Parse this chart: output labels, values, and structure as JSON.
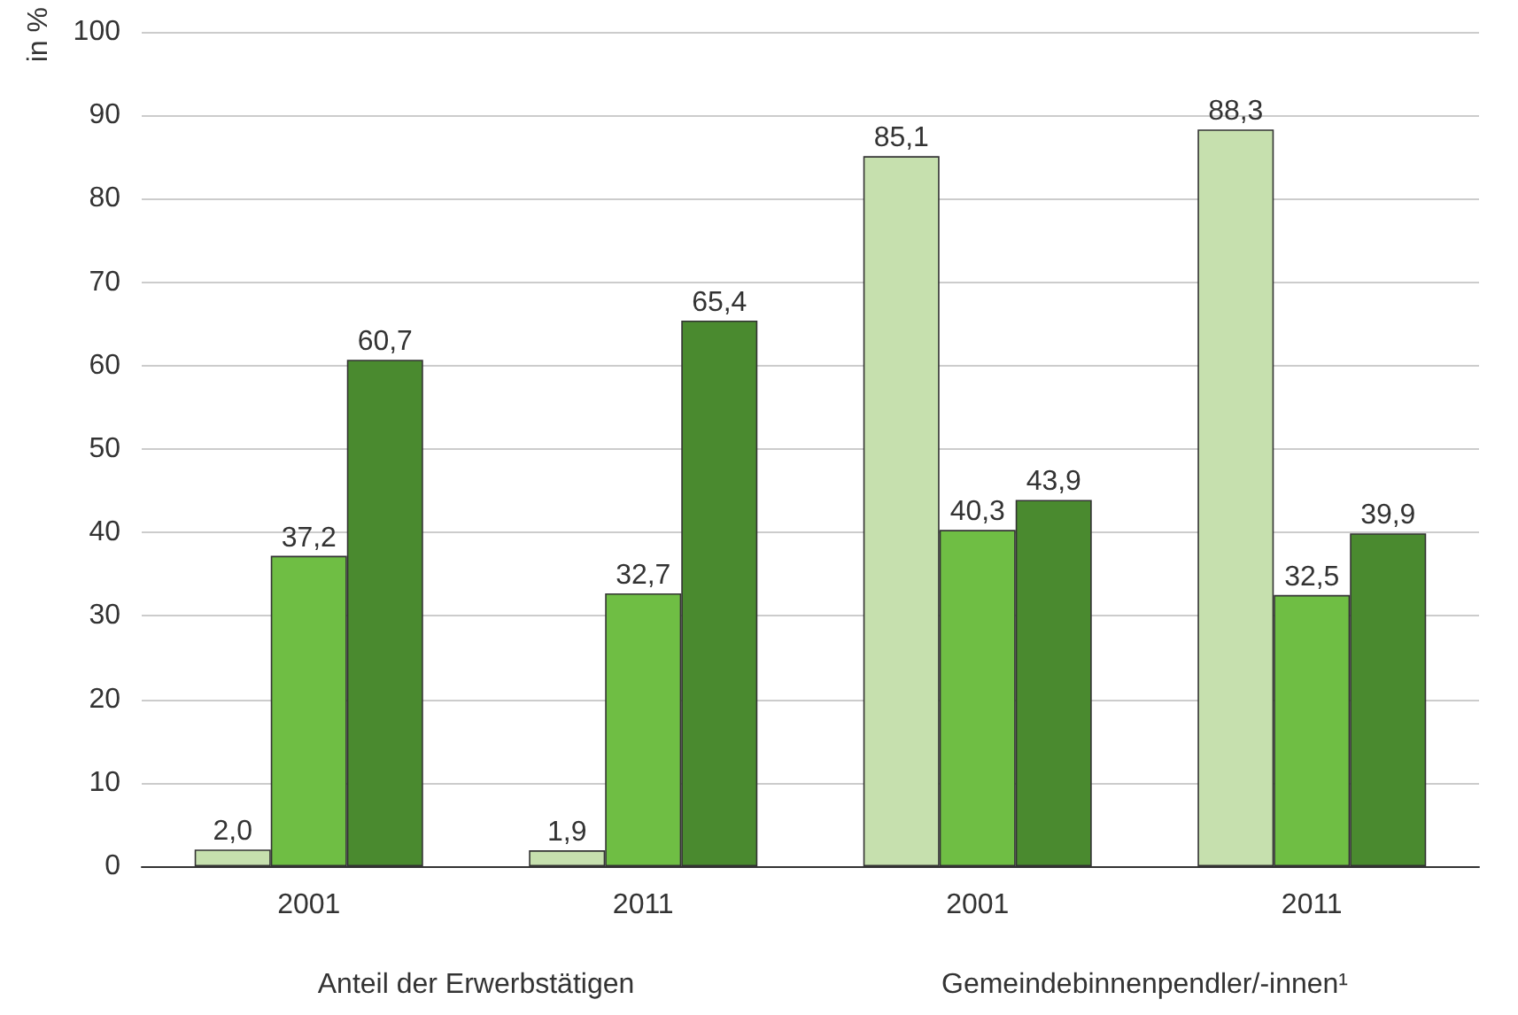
{
  "chart_data": {
    "type": "bar",
    "ylabel": "in %",
    "categories": [
      "2001",
      "2011",
      "2001",
      "2011"
    ],
    "series": [
      {
        "color": "#c6e0ae",
        "values": [
          2.0,
          1.9,
          85.1,
          88.3
        ],
        "value_labels": [
          "2,0",
          "1,9",
          "85,1",
          "88,3"
        ]
      },
      {
        "color": "#6fbe44",
        "values": [
          37.2,
          32.7,
          40.3,
          32.5
        ],
        "value_labels": [
          "37,2",
          "32,7",
          "40,3",
          "32,5"
        ]
      },
      {
        "color": "#4a8a2f",
        "values": [
          60.7,
          65.4,
          43.9,
          39.9
        ],
        "value_labels": [
          "60,7",
          "65,4",
          "43,9",
          "39,9"
        ]
      }
    ],
    "ylim": [
      0,
      100
    ],
    "yticks": [
      0,
      10,
      20,
      30,
      40,
      50,
      60,
      70,
      80,
      90,
      100
    ],
    "grid": "y",
    "annotations": [
      "Anteil der Erwerbstätigen",
      "Gemeindebinnenpendler/-innen¹"
    ]
  }
}
